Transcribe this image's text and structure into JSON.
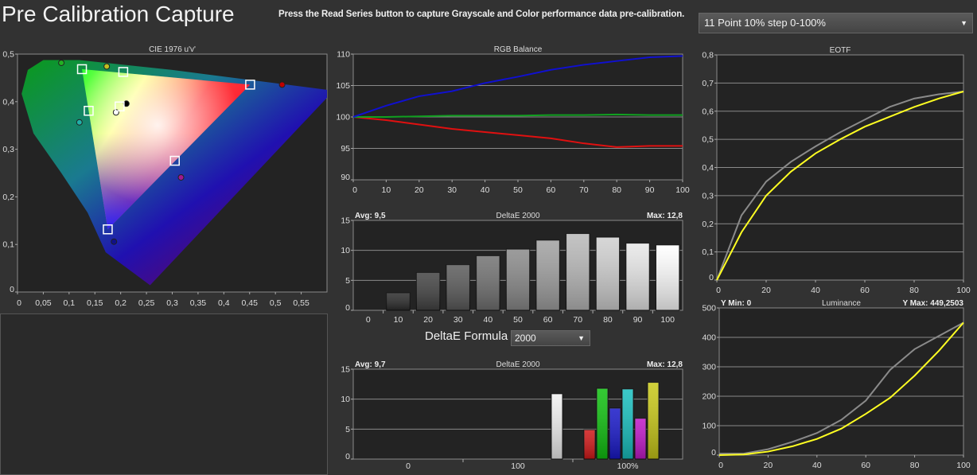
{
  "header": {
    "title": "Pre Calibration Capture",
    "instruction": "Press the Read Series button to capture Grayscale and Color performance data pre-calibration.",
    "series_select": "11 Point 10% step 0-100%"
  },
  "deltae_formula": {
    "label": "DeltaE Formula",
    "value": "2000"
  },
  "icons": {
    "dropdown": "chevron-down-icon"
  },
  "colors": {
    "bg": "#323232",
    "plot_bg": "#232323",
    "target": "#ffff22",
    "measured": "#8a8a8a"
  },
  "chart_data": [
    {
      "id": "cie",
      "type": "scatter",
      "title": "CIE 1976 u'v'",
      "xlim": [
        0,
        0.6
      ],
      "ylim": [
        0,
        0.6
      ],
      "xticks": [
        "0",
        "0,05",
        "0,1",
        "0,15",
        "0,2",
        "0,25",
        "0,3",
        "0,35",
        "0,4",
        "0,45",
        "0,5",
        "0,55"
      ],
      "yticks": [
        "0",
        "0,1",
        "0,2",
        "0,3",
        "0,4",
        "0,5"
      ],
      "targets": [
        {
          "name": "red",
          "u": 0.451,
          "v": 0.523
        },
        {
          "name": "green",
          "u": 0.125,
          "v": 0.562
        },
        {
          "name": "blue",
          "u": 0.175,
          "v": 0.158
        },
        {
          "name": "white",
          "u": 0.198,
          "v": 0.468
        },
        {
          "name": "cyan",
          "u": 0.138,
          "v": 0.457
        },
        {
          "name": "magenta",
          "u": 0.305,
          "v": 0.331
        },
        {
          "name": "yellow",
          "u": 0.205,
          "v": 0.555
        }
      ],
      "measured": [
        {
          "name": "red",
          "u": 0.513,
          "v": 0.523,
          "color": "#c00000"
        },
        {
          "name": "green",
          "u": 0.085,
          "v": 0.578,
          "color": "#22b022"
        },
        {
          "name": "blue",
          "u": 0.187,
          "v": 0.127,
          "color": "#10108a"
        },
        {
          "name": "white",
          "u": 0.191,
          "v": 0.453,
          "color": "#ffffff"
        },
        {
          "name": "cyan",
          "u": 0.12,
          "v": 0.428,
          "color": "#20b0a8"
        },
        {
          "name": "magenta",
          "u": 0.317,
          "v": 0.289,
          "color": "#a01890"
        },
        {
          "name": "yellow",
          "u": 0.173,
          "v": 0.569,
          "color": "#c0c020"
        },
        {
          "name": "black",
          "u": 0.211,
          "v": 0.475,
          "color": "#000000"
        }
      ]
    },
    {
      "id": "rgb",
      "type": "line",
      "title": "RGB Balance",
      "x": [
        0,
        10,
        20,
        30,
        40,
        50,
        60,
        70,
        80,
        90,
        100
      ],
      "xlim": [
        0,
        100
      ],
      "ylim": [
        90,
        110
      ],
      "xticks": [
        "0",
        "10",
        "20",
        "30",
        "40",
        "50",
        "60",
        "70",
        "80",
        "90",
        "100"
      ],
      "yticks": [
        "90",
        "95",
        "100",
        "105",
        "110"
      ],
      "series": [
        {
          "name": "Red",
          "color": "#e01010",
          "values": [
            100,
            99.5,
            98.8,
            98.1,
            97.6,
            97.1,
            96.6,
            95.8,
            95.2,
            95.4,
            95.4
          ]
        },
        {
          "name": "Green",
          "color": "#10a020",
          "values": [
            100,
            100,
            100.1,
            100.2,
            100.2,
            100.2,
            100.3,
            100.3,
            100.4,
            100.3,
            100.3
          ]
        },
        {
          "name": "Blue",
          "color": "#1010d0",
          "values": [
            100,
            101.8,
            103.3,
            104.1,
            105.4,
            106.4,
            107.5,
            108.3,
            108.9,
            109.5,
            109.7
          ]
        }
      ]
    },
    {
      "id": "gray",
      "type": "bar",
      "title": "DeltaE 2000",
      "avg": "Avg: 9,5",
      "max": "Max: 12,8",
      "ylim": [
        0,
        15
      ],
      "yticks": [
        "0",
        "5",
        "10",
        "15"
      ],
      "categories": [
        "0",
        "10",
        "20",
        "30",
        "40",
        "50",
        "60",
        "70",
        "80",
        "90",
        "100"
      ],
      "values": [
        0,
        2.9,
        6.3,
        7.6,
        9.1,
        10.2,
        11.7,
        12.8,
        12.2,
        11.2,
        10.9
      ]
    },
    {
      "id": "color",
      "type": "bar",
      "title": "DeltaE 2000",
      "avg": "Avg: 9,7",
      "max": "Max: 12,8",
      "ylim": [
        0,
        15
      ],
      "yticks": [
        "0",
        "5",
        "10",
        "15"
      ],
      "groups": [
        "0",
        "100",
        "100%"
      ],
      "bars": [
        {
          "name": "White",
          "group": 1,
          "value": 10.9,
          "color": "#f0f0f0"
        },
        {
          "name": "Red",
          "group": 2,
          "value": 4.9,
          "color": "#d01818"
        },
        {
          "name": "Green",
          "group": 2,
          "value": 11.8,
          "color": "#10c010"
        },
        {
          "name": "Blue",
          "group": 2,
          "value": 8.5,
          "color": "#1818c8"
        },
        {
          "name": "Cyan",
          "group": 2,
          "value": 11.7,
          "color": "#18c0c0"
        },
        {
          "name": "Magenta",
          "group": 2,
          "value": 6.8,
          "color": "#c018c8"
        },
        {
          "name": "Yellow",
          "group": 2,
          "value": 12.8,
          "color": "#c8c818"
        }
      ]
    },
    {
      "id": "eotf",
      "type": "line",
      "title": "EOTF",
      "x": [
        0,
        10,
        20,
        30,
        40,
        50,
        60,
        70,
        80,
        90,
        100
      ],
      "xlim": [
        0,
        100
      ],
      "ylim": [
        0,
        0.8
      ],
      "xticks": [
        "0",
        "20",
        "40",
        "60",
        "80",
        "100"
      ],
      "yticks": [
        "0",
        "0,1",
        "0,2",
        "0,3",
        "0,4",
        "0,5",
        "0,6",
        "0,7",
        "0,8"
      ],
      "series": [
        {
          "name": "Measured",
          "color": "#8a8a8a",
          "values": [
            0,
            0.23,
            0.35,
            0.42,
            0.475,
            0.525,
            0.57,
            0.615,
            0.645,
            0.66,
            0.67
          ]
        },
        {
          "name": "Target",
          "color": "#ffff22",
          "values": [
            0,
            0.17,
            0.3,
            0.385,
            0.45,
            0.5,
            0.545,
            0.58,
            0.615,
            0.645,
            0.67
          ]
        }
      ]
    },
    {
      "id": "lum",
      "type": "line",
      "title": "Luminance",
      "ymin_label": "Y Min: 0",
      "ymax_label": "Y Max: 449,2503",
      "x": [
        0,
        10,
        20,
        30,
        40,
        50,
        60,
        70,
        80,
        90,
        100
      ],
      "xlim": [
        0,
        100
      ],
      "ylim": [
        0,
        500
      ],
      "xticks": [
        "0",
        "20",
        "40",
        "60",
        "80",
        "100"
      ],
      "yticks": [
        "0",
        "100",
        "200",
        "300",
        "400",
        "500"
      ],
      "series": [
        {
          "name": "Measured",
          "color": "#8a8a8a",
          "values": [
            5,
            5,
            20,
            45,
            75,
            120,
            185,
            290,
            360,
            405,
            450
          ]
        },
        {
          "name": "Target",
          "color": "#ffff22",
          "values": [
            0,
            2,
            12,
            30,
            55,
            90,
            140,
            195,
            270,
            355,
            450
          ]
        }
      ]
    }
  ]
}
